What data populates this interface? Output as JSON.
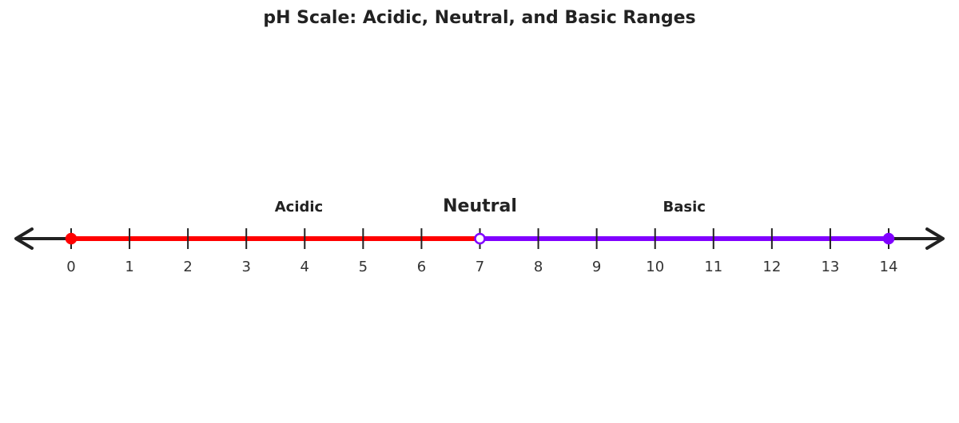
{
  "title": "pH Scale: Acidic, Neutral, and Basic Ranges",
  "number_line": {
    "min": 0,
    "max": 14,
    "ticks": [
      "0",
      "1",
      "2",
      "3",
      "4",
      "5",
      "6",
      "7",
      "8",
      "9",
      "10",
      "11",
      "12",
      "13",
      "14"
    ],
    "colors": {
      "axis": "#222222",
      "acidic": "#ff0000",
      "basic": "#8000ff"
    }
  },
  "regions": [
    {
      "label": "Acidic",
      "from": 0,
      "to": 7,
      "color": "#ff0000",
      "label_at": 3.9,
      "emphasis": false
    },
    {
      "label": "Neutral",
      "at": 7,
      "label_at": 7,
      "emphasis": true
    },
    {
      "label": "Basic",
      "from": 7,
      "to": 14,
      "color": "#8000ff",
      "label_at": 10.5,
      "emphasis": false
    }
  ],
  "endpoints": [
    {
      "value": 0,
      "filled": true,
      "color": "#ff0000"
    },
    {
      "value": 7,
      "filled": false,
      "color": "#8000ff"
    },
    {
      "value": 14,
      "filled": true,
      "color": "#8000ff"
    }
  ]
}
